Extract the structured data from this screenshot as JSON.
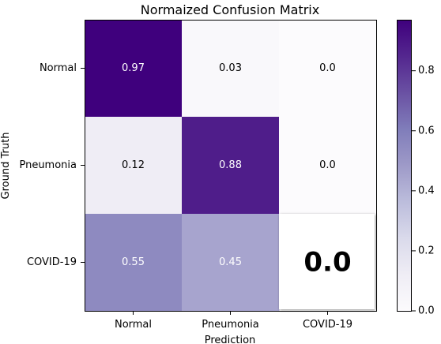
{
  "chart_data": {
    "type": "heatmap",
    "title": "Normaized Confusion Matrix",
    "xlabel": "Prediction",
    "ylabel": "Ground Truth",
    "x_categories": [
      "Normal",
      "Pneumonia",
      "COVID-19"
    ],
    "y_categories": [
      "Normal",
      "Pneumonia",
      "COVID-19"
    ],
    "values": [
      [
        0.97,
        0.03,
        0.0
      ],
      [
        0.12,
        0.88,
        0.0
      ],
      [
        0.55,
        0.45,
        0.0
      ]
    ],
    "cell_labels": [
      [
        "0.97",
        "0.03",
        "0.0"
      ],
      [
        "0.12",
        "0.88",
        "0.0"
      ],
      [
        "0.55",
        "0.45",
        "0.0"
      ]
    ],
    "highlighted_cell": {
      "row": 2,
      "col": 2
    },
    "colormap": "Purples",
    "colorbar": {
      "vmin": 0.0,
      "vmax": 0.97,
      "ticks": [
        0.0,
        0.2,
        0.4,
        0.6,
        0.8
      ],
      "tick_labels": [
        "0.0",
        "0.2",
        "0.4",
        "0.6",
        "0.8"
      ]
    }
  }
}
